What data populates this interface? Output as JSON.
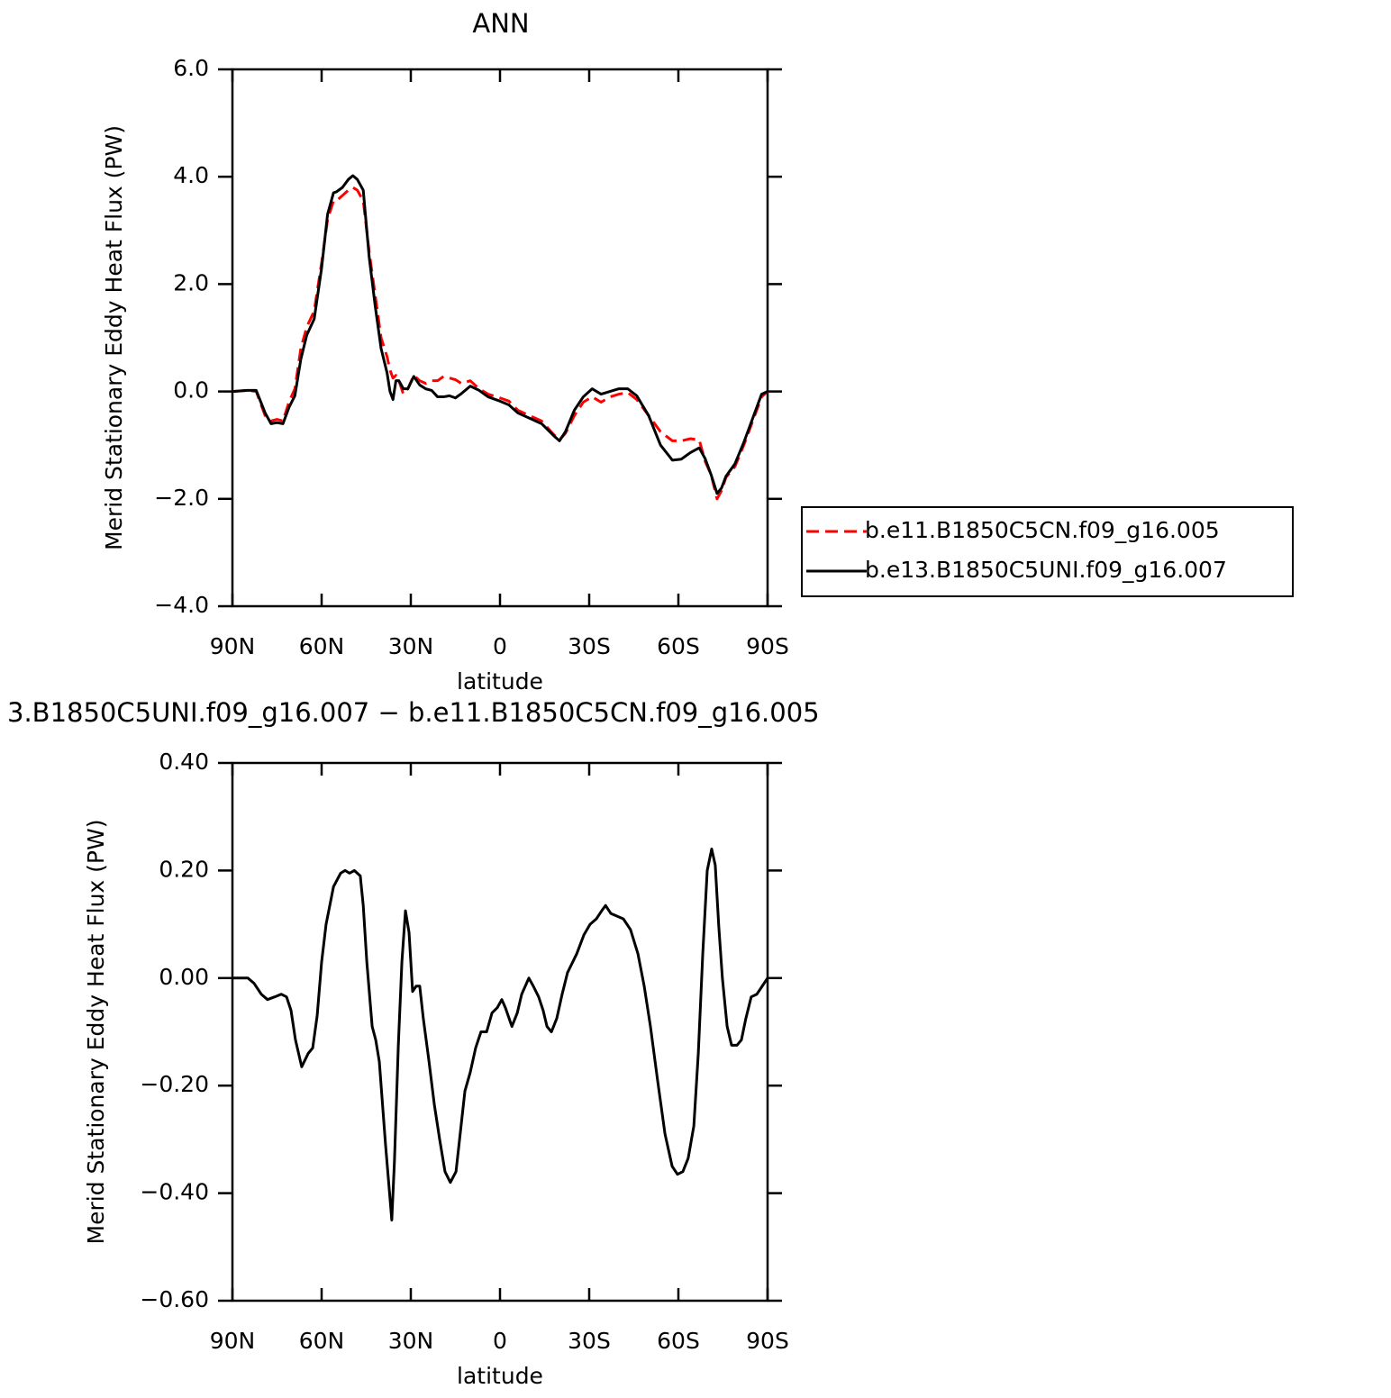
{
  "chart_data": [
    {
      "type": "line",
      "title": "ANN",
      "xlabel": "latitude",
      "ylabel": "Merid Stationary Eddy Heat Flux (PW)",
      "x": [
        90,
        85,
        82,
        79,
        77,
        75,
        73,
        71,
        69,
        67,
        65,
        62.5,
        60,
        58,
        56,
        55,
        53,
        51,
        49.5,
        48,
        46,
        44,
        42,
        40,
        38,
        37,
        36,
        35,
        34,
        32.5,
        31,
        29,
        27,
        25,
        23,
        21,
        19,
        17,
        15,
        13,
        10,
        7,
        4,
        0,
        -3,
        -6,
        -10,
        -14,
        -18,
        -20,
        -22,
        -25,
        -28,
        -31,
        -34,
        -37,
        -40,
        -43,
        -46,
        -50,
        -54,
        -58,
        -61,
        -64,
        -67,
        -69,
        -71,
        -73,
        -74.5,
        -76,
        -79,
        -82,
        -85,
        -88,
        -90
      ],
      "series": [
        {
          "name": "b.e11.B1850C5CN.f09_g16.005",
          "color": "#ff0000",
          "dashed": true,
          "values": [
            0,
            0.02,
            0.0,
            -0.45,
            -0.55,
            -0.52,
            -0.55,
            -0.2,
            0.05,
            0.8,
            1.2,
            1.5,
            2.4,
            3.2,
            3.55,
            3.55,
            3.65,
            3.75,
            3.8,
            3.75,
            3.55,
            2.6,
            1.8,
            1.0,
            0.65,
            0.4,
            0.25,
            0.3,
            0.2,
            -0.05,
            0.05,
            0.3,
            0.2,
            0.15,
            0.2,
            0.2,
            0.28,
            0.25,
            0.22,
            0.15,
            0.2,
            0.05,
            -0.05,
            -0.12,
            -0.18,
            -0.35,
            -0.45,
            -0.55,
            -0.8,
            -0.9,
            -0.78,
            -0.45,
            -0.2,
            -0.1,
            -0.2,
            -0.1,
            -0.05,
            -0.02,
            -0.15,
            -0.45,
            -0.75,
            -0.92,
            -0.92,
            -0.88,
            -0.9,
            -1.3,
            -1.55,
            -2.0,
            -1.85,
            -1.6,
            -1.4,
            -1.0,
            -0.55,
            -0.1,
            0
          ]
        },
        {
          "name": "b.e13.B1850C5UNI.f09_g16.007",
          "color": "#000000",
          "dashed": false,
          "values": [
            0,
            0.02,
            0.02,
            -0.4,
            -0.6,
            -0.58,
            -0.6,
            -0.3,
            -0.08,
            0.6,
            1.05,
            1.35,
            2.3,
            3.3,
            3.7,
            3.72,
            3.8,
            3.95,
            4.02,
            3.95,
            3.75,
            2.5,
            1.6,
            0.8,
            0.35,
            0.0,
            -0.15,
            0.2,
            0.2,
            0.05,
            0.05,
            0.28,
            0.12,
            0.05,
            0.02,
            -0.1,
            -0.1,
            -0.08,
            -0.12,
            -0.04,
            0.1,
            0.02,
            -0.1,
            -0.18,
            -0.25,
            -0.4,
            -0.5,
            -0.6,
            -0.82,
            -0.92,
            -0.75,
            -0.35,
            -0.1,
            0.05,
            -0.05,
            0.0,
            0.05,
            0.05,
            -0.08,
            -0.45,
            -1.0,
            -1.28,
            -1.26,
            -1.14,
            -1.05,
            -1.25,
            -1.55,
            -1.9,
            -1.8,
            -1.58,
            -1.35,
            -0.95,
            -0.5,
            -0.05,
            0
          ]
        }
      ],
      "xlim": [
        90,
        -90
      ],
      "xticks": [
        {
          "value": 90,
          "label": "90N"
        },
        {
          "value": 60,
          "label": "60N"
        },
        {
          "value": 30,
          "label": "30N"
        },
        0,
        {
          "value": -30,
          "label": "30S"
        },
        {
          "value": -60,
          "label": "60S"
        },
        {
          "value": -90,
          "label": "90S"
        }
      ],
      "ylim": [
        -4,
        6
      ],
      "yticks": [
        {
          "value": 6,
          "label": "6.0"
        },
        {
          "value": 4,
          "label": "4.0"
        },
        {
          "value": 2,
          "label": "2.0"
        },
        {
          "value": 0,
          "label": "0.0"
        },
        {
          "value": -2,
          "label": "−2.0"
        },
        {
          "value": -4,
          "label": "−4.0"
        }
      ],
      "legend": "right"
    },
    {
      "type": "line",
      "title": "3.B1850C5UNI.f09_g16.007 − b.e11.B1850C5CN.f09_g16.005",
      "xlabel": "latitude",
      "ylabel": "Merid Stationary Eddy Heat Flux (PW)",
      "x": [
        90,
        84.8,
        82.7,
        80.3,
        78.2,
        75.8,
        73.6,
        71.8,
        70.3,
        68.8,
        66.7,
        64.5,
        63,
        61.5,
        60,
        58.5,
        56,
        53.6,
        52.1,
        50.6,
        49,
        47,
        46,
        44.8,
        43,
        41.8,
        40.6,
        38.5,
        37.3,
        36.4,
        35.5,
        34.2,
        33,
        31.8,
        30.6,
        29.4,
        28.2,
        27,
        25.8,
        24,
        22.1,
        20.3,
        18.5,
        16.7,
        14.8,
        13.6,
        11.8,
        10,
        8.2,
        6.4,
        4.5,
        2.7,
        0.9,
        -0.6,
        -1.8,
        -4,
        -5.8,
        -7.3,
        -9.7,
        -11.2,
        -13,
        -14.5,
        -15.8,
        -17.3,
        -19.1,
        -20.9,
        -22.7,
        -25.8,
        -28.2,
        -30.3,
        -32.4,
        -34.2,
        -35.5,
        -37.3,
        -39.4,
        -41.5,
        -43.9,
        -46.4,
        -48.5,
        -50.6,
        -53,
        -55.5,
        -57.9,
        -59.7,
        -61.5,
        -63.3,
        -65.2,
        -66.7,
        -68.2,
        -69.7,
        -71.2,
        -72.4,
        -73.6,
        -74.8,
        -76.4,
        -77.9,
        -79.7,
        -81.2,
        -82.7,
        -84.5,
        -86.4,
        -88.2,
        -90
      ],
      "series": [
        {
          "color": "#000000",
          "dashed": false,
          "values": [
            0,
            0,
            -0.01,
            -0.03,
            -0.04,
            -0.035,
            -0.03,
            -0.035,
            -0.06,
            -0.115,
            -0.165,
            -0.14,
            -0.13,
            -0.07,
            0.03,
            0.1,
            0.17,
            0.195,
            0.2,
            0.195,
            0.2,
            0.19,
            0.135,
            0.03,
            -0.09,
            -0.115,
            -0.155,
            -0.31,
            -0.39,
            -0.45,
            -0.34,
            -0.125,
            0.03,
            0.125,
            0.085,
            -0.025,
            -0.015,
            -0.015,
            -0.075,
            -0.15,
            -0.235,
            -0.3,
            -0.36,
            -0.38,
            -0.36,
            -0.3,
            -0.21,
            -0.175,
            -0.13,
            -0.1,
            -0.1,
            -0.065,
            -0.055,
            -0.04,
            -0.055,
            -0.09,
            -0.065,
            -0.03,
            0.0,
            -0.015,
            -0.035,
            -0.06,
            -0.09,
            -0.1,
            -0.075,
            -0.03,
            0.01,
            0.045,
            0.08,
            0.1,
            0.11,
            0.125,
            0.135,
            0.12,
            0.115,
            0.11,
            0.09,
            0.045,
            -0.015,
            -0.09,
            -0.19,
            -0.29,
            -0.35,
            -0.365,
            -0.36,
            -0.335,
            -0.275,
            -0.14,
            0.045,
            0.2,
            0.24,
            0.21,
            0.095,
            0.0,
            -0.09,
            -0.125,
            -0.125,
            -0.115,
            -0.075,
            -0.035,
            -0.03,
            -0.015,
            0
          ]
        }
      ],
      "xlim": [
        90,
        -90
      ],
      "xticks": [
        {
          "value": 90,
          "label": "90N"
        },
        {
          "value": 60,
          "label": "60N"
        },
        {
          "value": 30,
          "label": "30N"
        },
        0,
        {
          "value": -30,
          "label": "30S"
        },
        {
          "value": -60,
          "label": "60S"
        },
        {
          "value": -90,
          "label": "90S"
        }
      ],
      "ylim": [
        -0.6,
        0.4
      ],
      "yticks": [
        {
          "value": 0.4,
          "label": "0.40"
        },
        {
          "value": 0.2,
          "label": "0.20"
        },
        {
          "value": 0,
          "label": "0.00"
        },
        {
          "value": -0.2,
          "label": "−0.20"
        },
        {
          "value": -0.4,
          "label": "−0.40"
        },
        {
          "value": -0.6,
          "label": "−0.60"
        }
      ]
    }
  ]
}
